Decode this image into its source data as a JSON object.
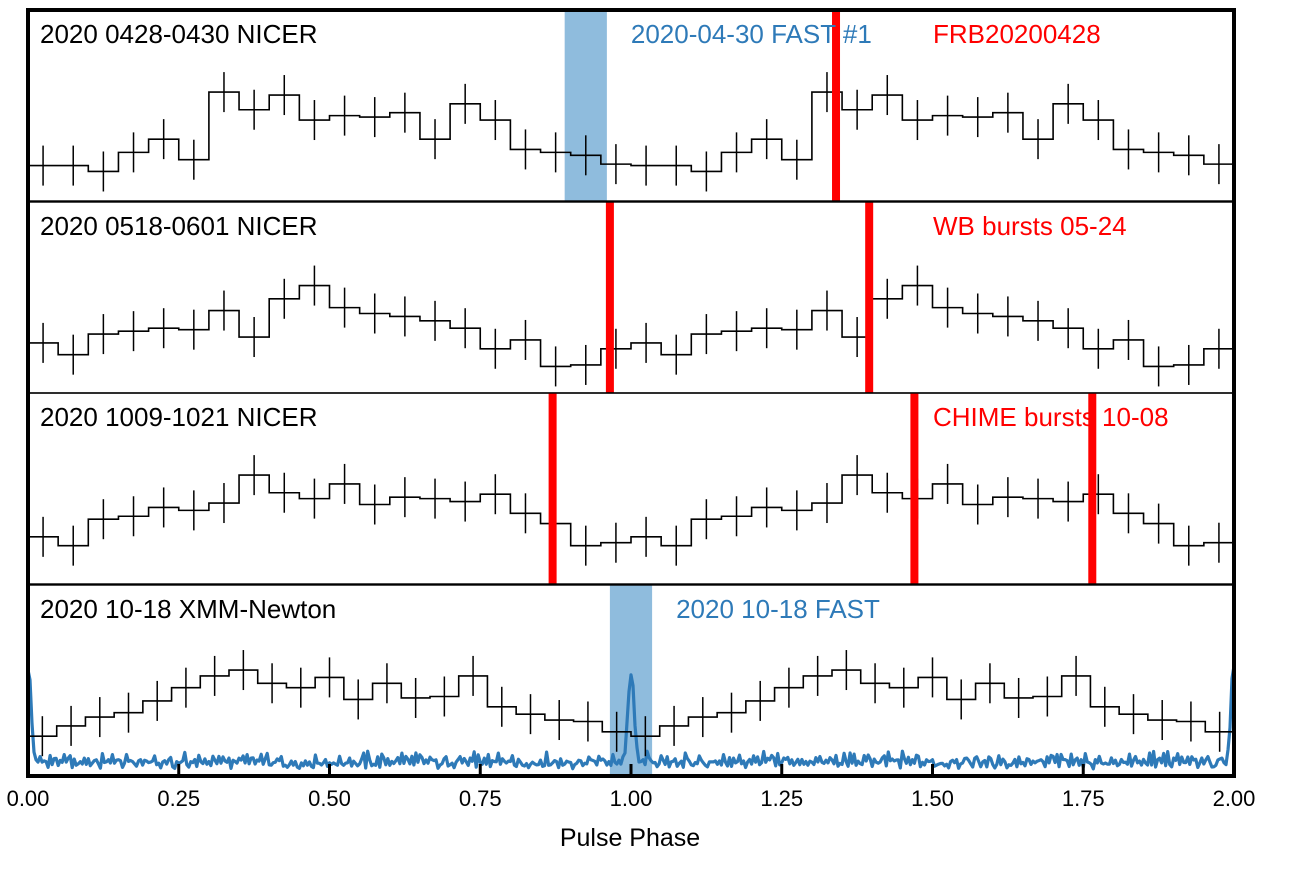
{
  "chart_data": {
    "type": "step",
    "xlabel": "Pulse Phase",
    "xlim": [
      0,
      2
    ],
    "xticks": [
      "0.00",
      "0.25",
      "0.50",
      "0.75",
      "1.00",
      "1.25",
      "1.50",
      "1.75",
      "2.00"
    ],
    "colors": {
      "profile": "#000000",
      "fast": "#2e7ab8",
      "fast_band": "#8fbcdd",
      "burst": "#ff0000"
    },
    "panels": [
      {
        "label": "2020 0428-0430 NICER",
        "profile": [
          0.2,
          0.2,
          0.16,
          0.29,
          0.38,
          0.24,
          0.7,
          0.58,
          0.68,
          0.51,
          0.54,
          0.53,
          0.56,
          0.38,
          0.62,
          0.51,
          0.31,
          0.29,
          0.27,
          0.21
        ],
        "bands": [
          {
            "x0": 0.89,
            "x1": 0.96,
            "label": "2020-04-30 FAST #1"
          }
        ],
        "bursts": [
          {
            "x": 1.34,
            "label": "FRB20200428"
          }
        ]
      },
      {
        "label": "2020 0518-0601 NICER",
        "profile": [
          0.3,
          0.22,
          0.36,
          0.38,
          0.4,
          0.39,
          0.52,
          0.34,
          0.6,
          0.69,
          0.54,
          0.5,
          0.48,
          0.45,
          0.4,
          0.26,
          0.32,
          0.14,
          0.15,
          0.26
        ],
        "bursts": [
          {
            "x": 0.965
          },
          {
            "x": 1.395,
            "label": "WB bursts 05-24"
          }
        ]
      },
      {
        "label": "2020 1009-1021 NICER",
        "profile": [
          0.28,
          0.22,
          0.4,
          0.42,
          0.48,
          0.46,
          0.51,
          0.7,
          0.58,
          0.54,
          0.64,
          0.5,
          0.55,
          0.54,
          0.52,
          0.57,
          0.44,
          0.37,
          0.22,
          0.24
        ],
        "bursts": [
          {
            "x": 0.87
          },
          {
            "x": 1.47,
            "label": "CHIME bursts 10-08"
          },
          {
            "x": 1.765
          }
        ]
      },
      {
        "label": "2020 10-18 XMM-Newton",
        "profile": [
          0.23,
          0.3,
          0.36,
          0.39,
          0.47,
          0.56,
          0.64,
          0.68,
          0.59,
          0.56,
          0.63,
          0.48,
          0.59,
          0.49,
          0.5,
          0.64,
          0.43,
          0.38,
          0.34,
          0.33,
          0.26
        ],
        "bands": [
          {
            "x0": 0.965,
            "x1": 1.035,
            "label": "2020 10-18 FAST"
          }
        ],
        "fast_series": {
          "type": "line",
          "peak_x": 1.0
        }
      }
    ]
  }
}
